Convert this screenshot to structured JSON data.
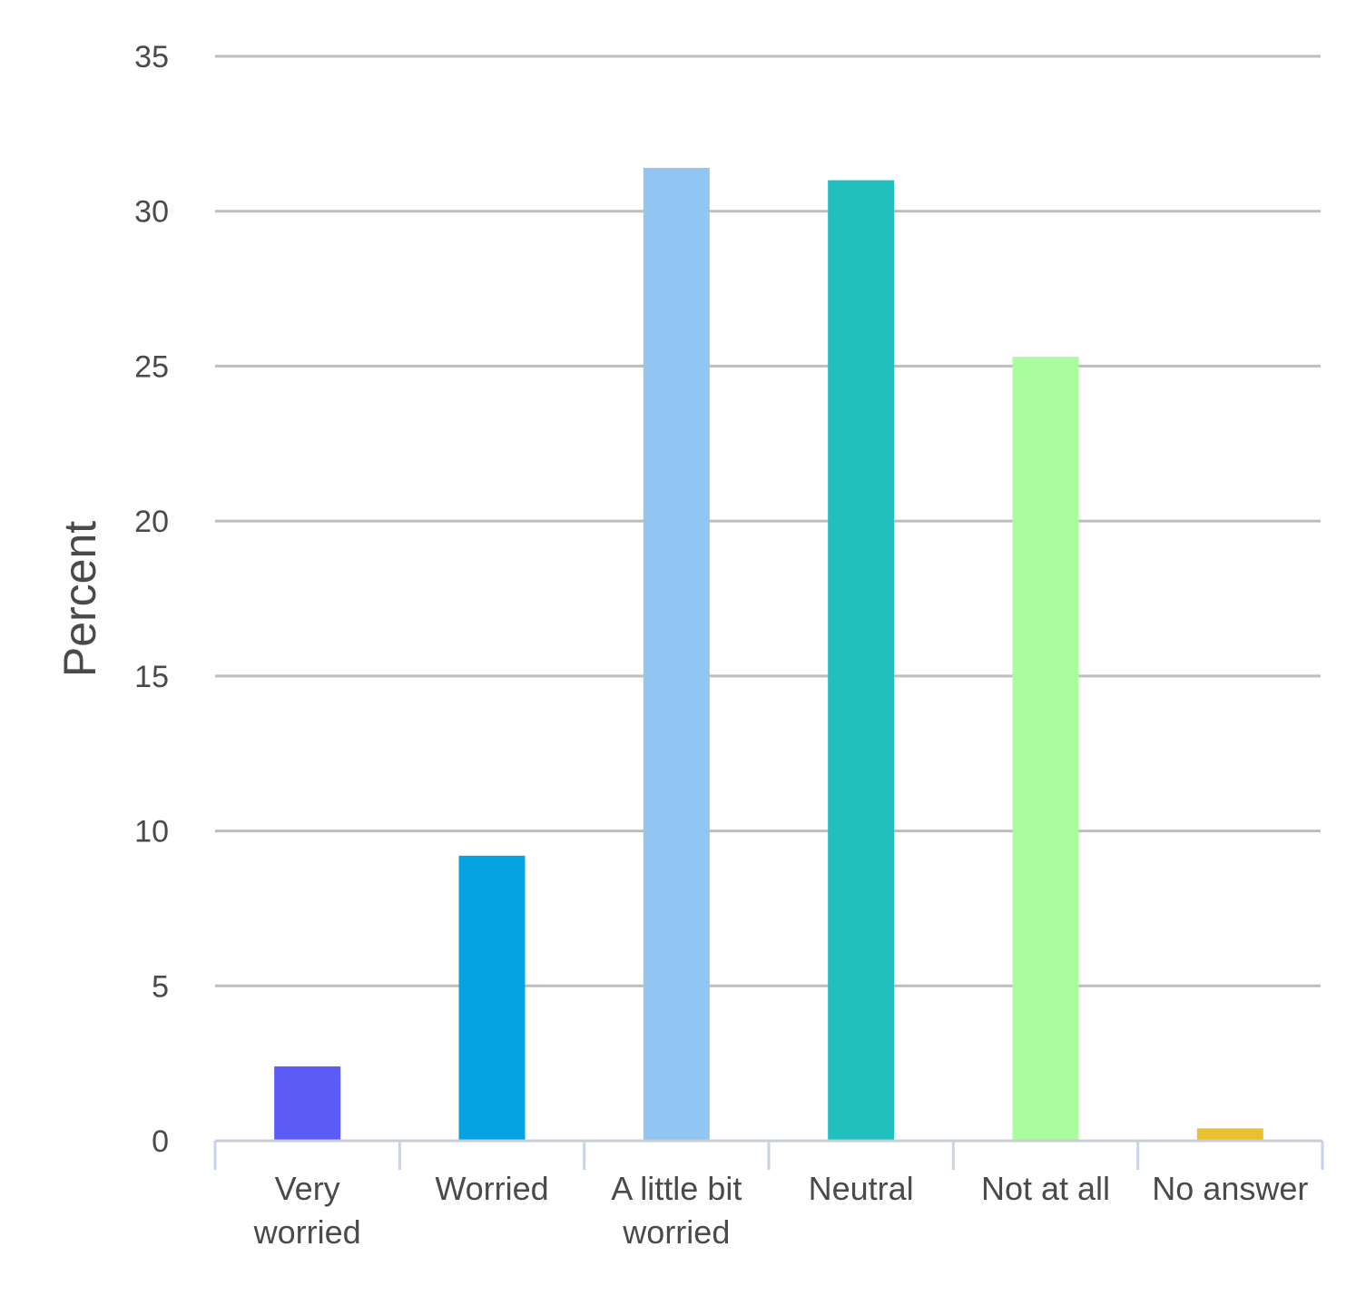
{
  "chart_data": {
    "type": "bar",
    "title": "",
    "xlabel": "",
    "ylabel": "Percent",
    "categories": [
      [
        "Very",
        "worried"
      ],
      [
        "Worried"
      ],
      [
        "A little bit",
        "worried"
      ],
      [
        "Neutral"
      ],
      [
        "Not at all"
      ],
      [
        "No answer"
      ]
    ],
    "values": [
      2.4,
      9.2,
      31.4,
      31.0,
      25.3,
      0.4
    ],
    "colors": [
      "#5a5cf5",
      "#06a3e2",
      "#92c5f2",
      "#22c0bd",
      "#a9fd9e",
      "#e9c12f"
    ],
    "ylim": [
      0,
      35
    ],
    "yticks": [
      0,
      5,
      10,
      15,
      20,
      25,
      30,
      35
    ],
    "grid": true,
    "legend": "none"
  }
}
